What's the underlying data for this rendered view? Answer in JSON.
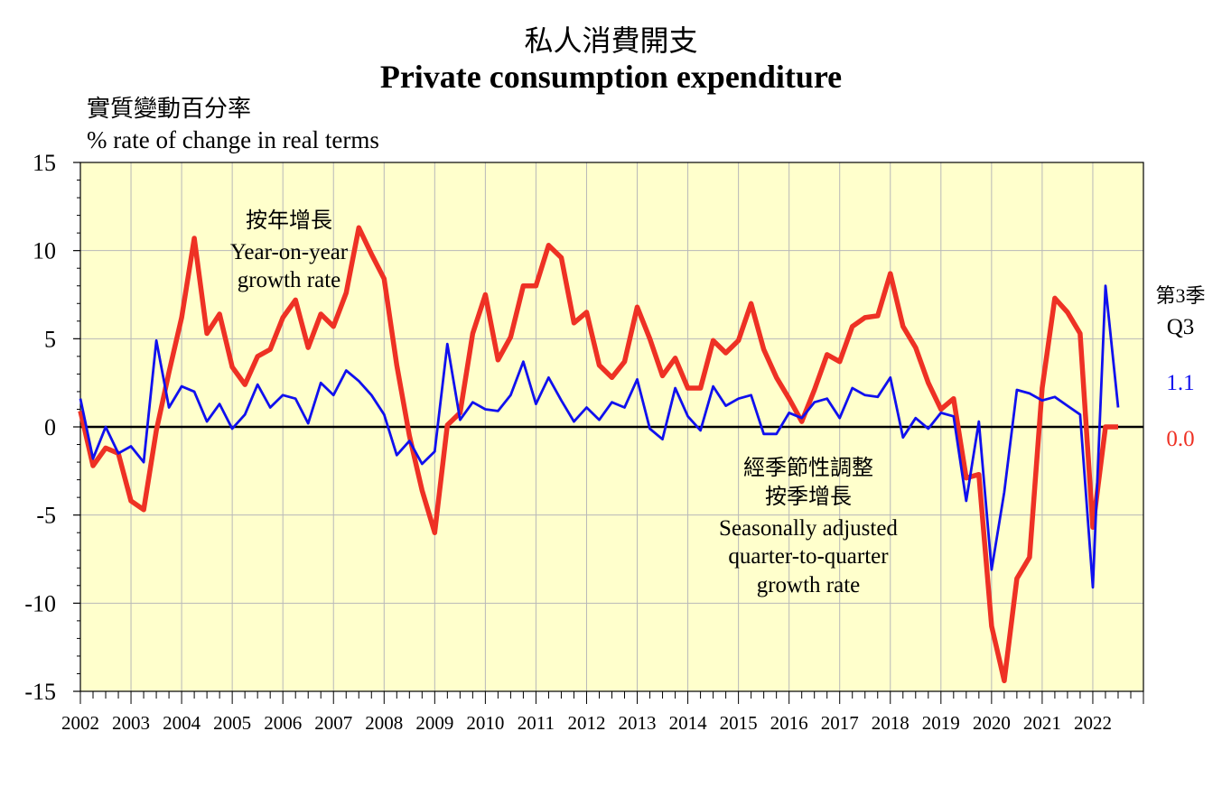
{
  "title_zh": "私人消費開支",
  "title_en": "Private consumption expenditure",
  "ylabel_zh": "實質變動百分率",
  "ylabel_en": "% rate of change in real terms",
  "chart_data": {
    "type": "line",
    "title": "私人消費開支 Private consumption expenditure",
    "ylabel": "% rate of change in real terms",
    "ylim": [
      -15,
      15
    ],
    "yticks": [
      15,
      10,
      5,
      0,
      -5,
      -10,
      -15
    ],
    "ytick_labels": [
      "15",
      "10",
      "5",
      "0",
      "-5",
      "-10",
      "-15"
    ],
    "years": [
      "2002",
      "2003",
      "2004",
      "2005",
      "2006",
      "2007",
      "2008",
      "2009",
      "2010",
      "2011",
      "2012",
      "2013",
      "2014",
      "2015",
      "2016",
      "2017",
      "2018",
      "2019",
      "2020",
      "2021",
      "2022"
    ],
    "grid": true,
    "series": [
      {
        "name": "按年增長 Year-on-year growth rate",
        "color": "#ee3124",
        "values": [
          0.9,
          -2.2,
          -1.2,
          -1.5,
          -4.2,
          -4.7,
          -0.2,
          3.1,
          6.2,
          10.7,
          5.3,
          6.4,
          3.4,
          2.4,
          4.0,
          4.4,
          6.2,
          7.2,
          4.5,
          6.4,
          5.7,
          7.6,
          11.3,
          9.8,
          8.4,
          3.5,
          -0.5,
          -3.6,
          -6.0,
          0.1,
          0.8,
          5.3,
          7.5,
          3.8,
          5.1,
          8.0,
          8.0,
          10.3,
          9.6,
          5.9,
          6.5,
          3.5,
          2.8,
          3.7,
          6.8,
          5.0,
          2.9,
          3.9,
          2.2,
          2.2,
          4.9,
          4.2,
          4.9,
          7.0,
          4.4,
          2.8,
          1.6,
          0.3,
          2.1,
          4.1,
          3.7,
          5.7,
          6.2,
          6.3,
          8.7,
          5.7,
          4.5,
          2.5,
          1.0,
          1.6,
          -2.9,
          -2.7,
          -11.3,
          -14.4,
          -8.6,
          -7.4,
          2.2,
          7.3,
          6.5,
          5.3,
          -5.7,
          0.0,
          0.0
        ]
      },
      {
        "name": "經季節性調整按季增長 Seasonally adjusted quarter-to-quarter growth rate",
        "color": "#1010ee",
        "values": [
          1.6,
          -1.8,
          0.0,
          -1.5,
          -1.1,
          -2.0,
          4.9,
          1.1,
          2.3,
          2.0,
          0.3,
          1.3,
          -0.1,
          0.7,
          2.4,
          1.1,
          1.8,
          1.6,
          0.2,
          2.5,
          1.8,
          3.2,
          2.6,
          1.8,
          0.7,
          -1.6,
          -0.8,
          -2.1,
          -1.4,
          4.7,
          0.4,
          1.4,
          1.0,
          0.9,
          1.8,
          3.7,
          1.3,
          2.8,
          1.5,
          0.3,
          1.1,
          0.4,
          1.4,
          1.1,
          2.7,
          -0.1,
          -0.7,
          2.2,
          0.6,
          -0.2,
          2.3,
          1.2,
          1.6,
          1.8,
          -0.4,
          -0.4,
          0.8,
          0.5,
          1.4,
          1.6,
          0.5,
          2.2,
          1.8,
          1.7,
          2.8,
          -0.6,
          0.5,
          -0.1,
          0.8,
          0.6,
          -4.2,
          0.3,
          -8.1,
          -3.7,
          2.1,
          1.9,
          1.5,
          1.7,
          1.2,
          0.7,
          -9.1,
          8.0,
          1.1
        ]
      }
    ],
    "annotations": {
      "yoy_zh": "按年增長",
      "yoy_en1": "Year-on-year",
      "yoy_en2": "growth rate",
      "qoq_zh1": "經季節性調整",
      "qoq_zh2": "按季增長",
      "qoq_en1": "Seasonally adjusted",
      "qoq_en2": "quarter-to-quarter",
      "qoq_en3": "growth rate",
      "latest_zh": "第3季",
      "latest_en": "Q3",
      "latest_qoq": "1.1",
      "latest_yoy": "0.0"
    },
    "colors": {
      "plot_bg": "#ffffcc",
      "yoy": "#ee3124",
      "qoq": "#1010ee"
    }
  }
}
